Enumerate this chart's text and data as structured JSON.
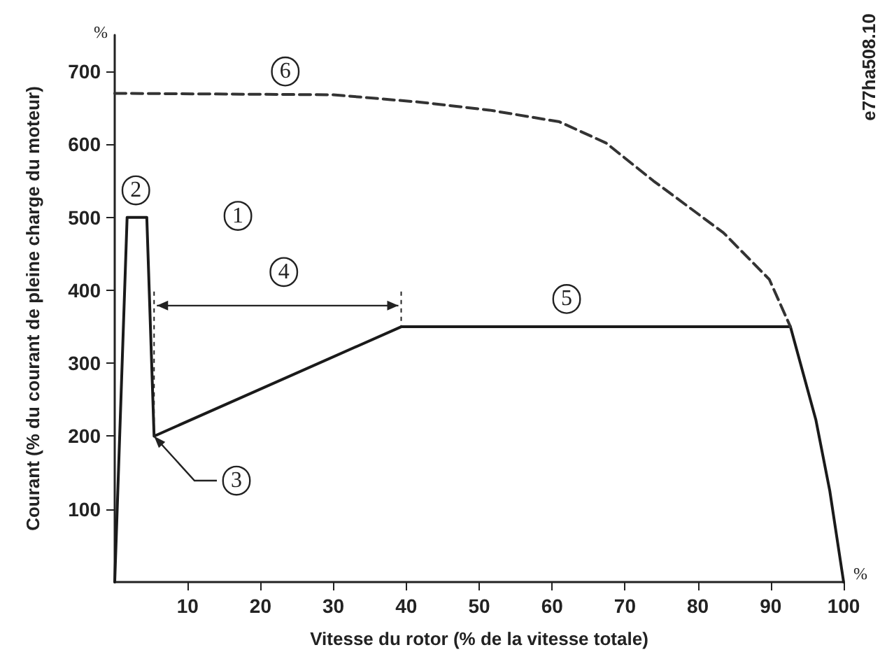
{
  "chart_data": {
    "type": "line",
    "xlabel": "Vitesse du rotor (% de la vitesse totale)",
    "ylabel": "Courant (% du courant de pleine charge du moteur)",
    "xlim": [
      0,
      100
    ],
    "ylim": [
      0,
      750
    ],
    "xticks": [
      10,
      20,
      30,
      40,
      50,
      60,
      70,
      80,
      90,
      100
    ],
    "yticks": [
      100,
      200,
      300,
      400,
      500,
      600,
      700
    ],
    "grid": false,
    "marker": "none",
    "series": [
      {
        "color": "#1a1a1a",
        "line_style": "solid",
        "x": [
          0,
          1.7,
          4.4,
          5.4,
          39.3,
          92.7,
          96.2,
          98.1,
          100
        ],
        "values": [
          0,
          500,
          500,
          200,
          350,
          350,
          222,
          125,
          0
        ]
      },
      {
        "color": "#333333",
        "line_style": "dashed",
        "x": [
          0,
          30,
          41.8,
          51.4,
          61,
          67.4,
          73.9,
          83.5,
          89.8,
          92.7
        ],
        "values": [
          670,
          668,
          658,
          647,
          631,
          602,
          550,
          479,
          415,
          350
        ]
      }
    ],
    "annotations": [
      {
        "text": "1",
        "x": 16.9,
        "y": 502
      },
      {
        "text": "2",
        "x": 2.9,
        "y": 537
      },
      {
        "text": "3",
        "x": 16.7,
        "y": 139
      },
      {
        "text": "4",
        "x": 23.2,
        "y": 425
      },
      {
        "text": "5",
        "x": 62,
        "y": 388
      },
      {
        "text": "6",
        "x": 23.4,
        "y": 700
      },
      "%",
      "%",
      "e77ha508.10"
    ]
  }
}
